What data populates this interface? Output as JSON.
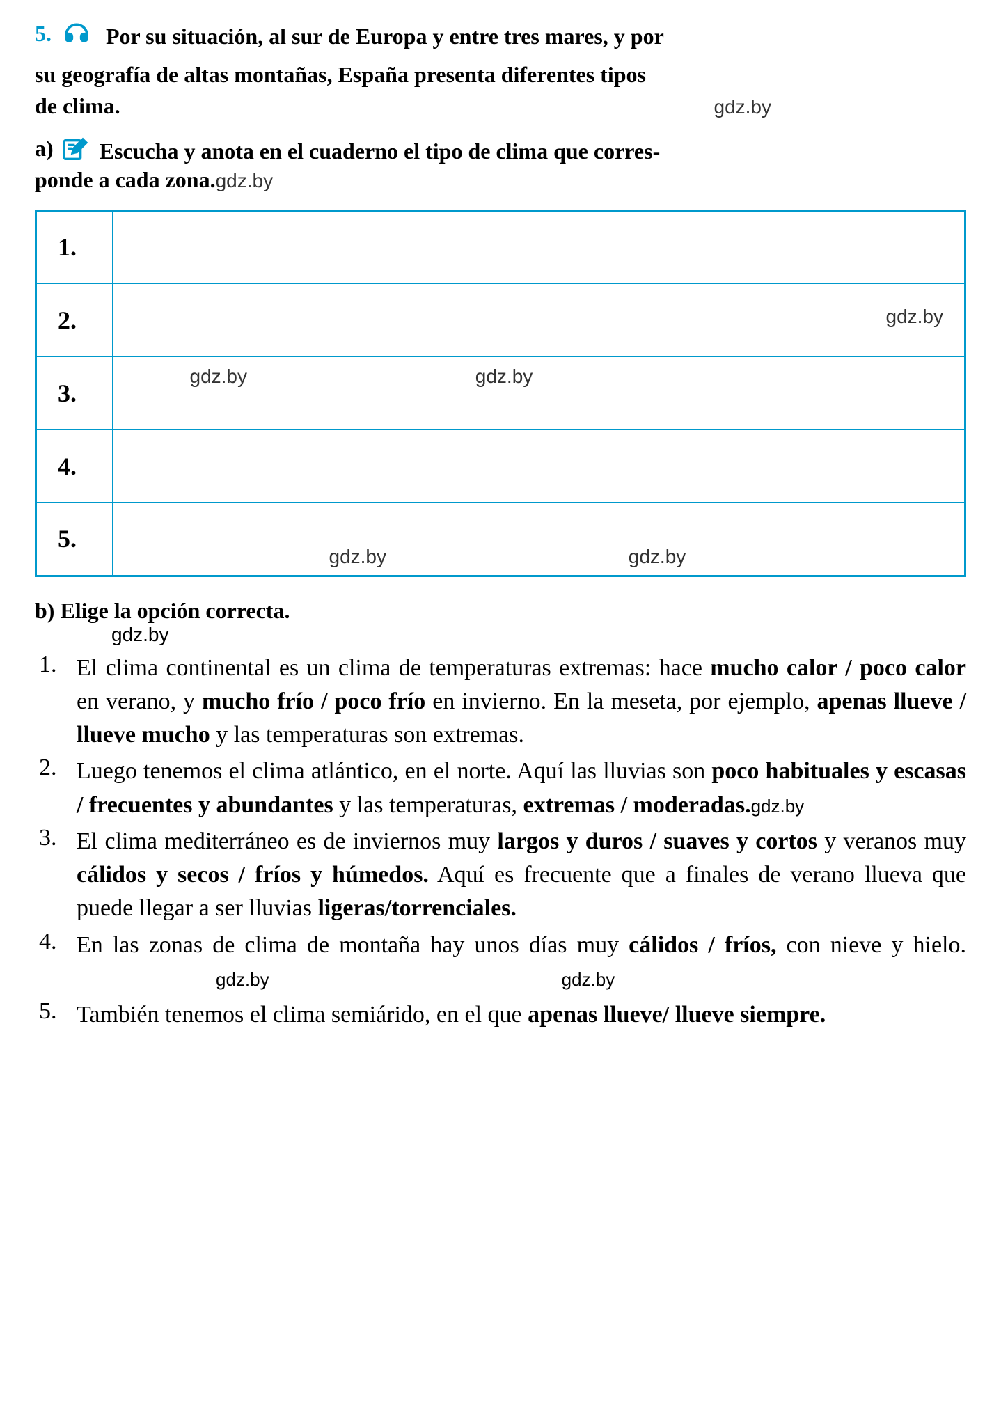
{
  "exercise": {
    "number": "5.",
    "intro_line1": "Por su situación, al sur de Europa y entre tres mares, y por",
    "intro_line2": "su geografía de altas montañas, España presenta diferentes tipos",
    "intro_line3_prefix": "de clima.",
    "watermark": "gdz.by"
  },
  "section_a": {
    "label": "a)",
    "text_line1": "Escucha y anota en el cuaderno el tipo de clima que corres-",
    "text_line2_prefix": "ponde a cada zona.",
    "watermark": "gdz.by"
  },
  "table": {
    "rows": [
      {
        "num": "1.",
        "content": ""
      },
      {
        "num": "2.",
        "wm_right": "gdz.by"
      },
      {
        "num": "3.",
        "wm1": "gdz.by",
        "wm2": "gdz.by"
      },
      {
        "num": "4.",
        "content": ""
      },
      {
        "num": "5.",
        "wm1": "gdz.by",
        "wm2": "gdz.by"
      }
    ]
  },
  "section_b": {
    "title": "b) Elige la opción correcta.",
    "watermark": "gdz.by",
    "items": [
      {
        "num": "1.",
        "text_parts": [
          {
            "t": "El clima continental es un clima de temperaturas extremas: hace ",
            "b": false
          },
          {
            "t": "mucho calor / poco calor",
            "b": true
          },
          {
            "t": " en verano, y ",
            "b": false
          },
          {
            "t": "mucho frío / poco frío",
            "b": true
          },
          {
            "t": " en invierno. En la meseta, por ejemplo, ",
            "b": false
          },
          {
            "t": "apenas llueve / llueve mucho",
            "b": true
          },
          {
            "t": " y las temperaturas son extremas.",
            "b": false
          }
        ]
      },
      {
        "num": "2.",
        "text_parts": [
          {
            "t": "Luego tenemos el clima atlántico, en el norte. Aquí las lluvias son ",
            "b": false
          },
          {
            "t": "poco habituales y escasas / frecuentes y abundantes",
            "b": true
          },
          {
            "t": " y las temperaturas, ",
            "b": false
          },
          {
            "t": "extremas / moderadas.",
            "b": true
          },
          {
            "t": "gdz.by",
            "b": false,
            "wm": true
          }
        ]
      },
      {
        "num": "3.",
        "text_parts": [
          {
            "t": "El clima mediterráneo es de inviernos muy ",
            "b": false
          },
          {
            "t": "largos y duros / suaves y cortos",
            "b": true
          },
          {
            "t": " y veranos muy ",
            "b": false
          },
          {
            "t": "cálidos y secos / fríos y húmedos.",
            "b": true
          },
          {
            "t": " Aquí es frecuente que a finales de verano llueva que puede llegar a ser lluvias ",
            "b": false
          },
          {
            "t": "ligeras/torrenciales.",
            "b": true
          }
        ]
      },
      {
        "num": "4.",
        "text_parts": [
          {
            "t": "En las zonas de clima de montaña hay unos días muy ",
            "b": false
          },
          {
            "t": "cálidos / fríos,",
            "b": true
          },
          {
            "t": " con nieve y hielo.",
            "b": false
          }
        ],
        "trailing_wm": [
          "gdz.by",
          "gdz.by"
        ]
      },
      {
        "num": "5.",
        "text_parts": [
          {
            "t": "También tenemos el clima semiárido, en el que ",
            "b": false
          },
          {
            "t": "apenas llueve/ llueve siempre.",
            "b": true
          }
        ]
      }
    ]
  },
  "colors": {
    "accent": "#0099cc",
    "text": "#000000",
    "background": "#ffffff"
  }
}
